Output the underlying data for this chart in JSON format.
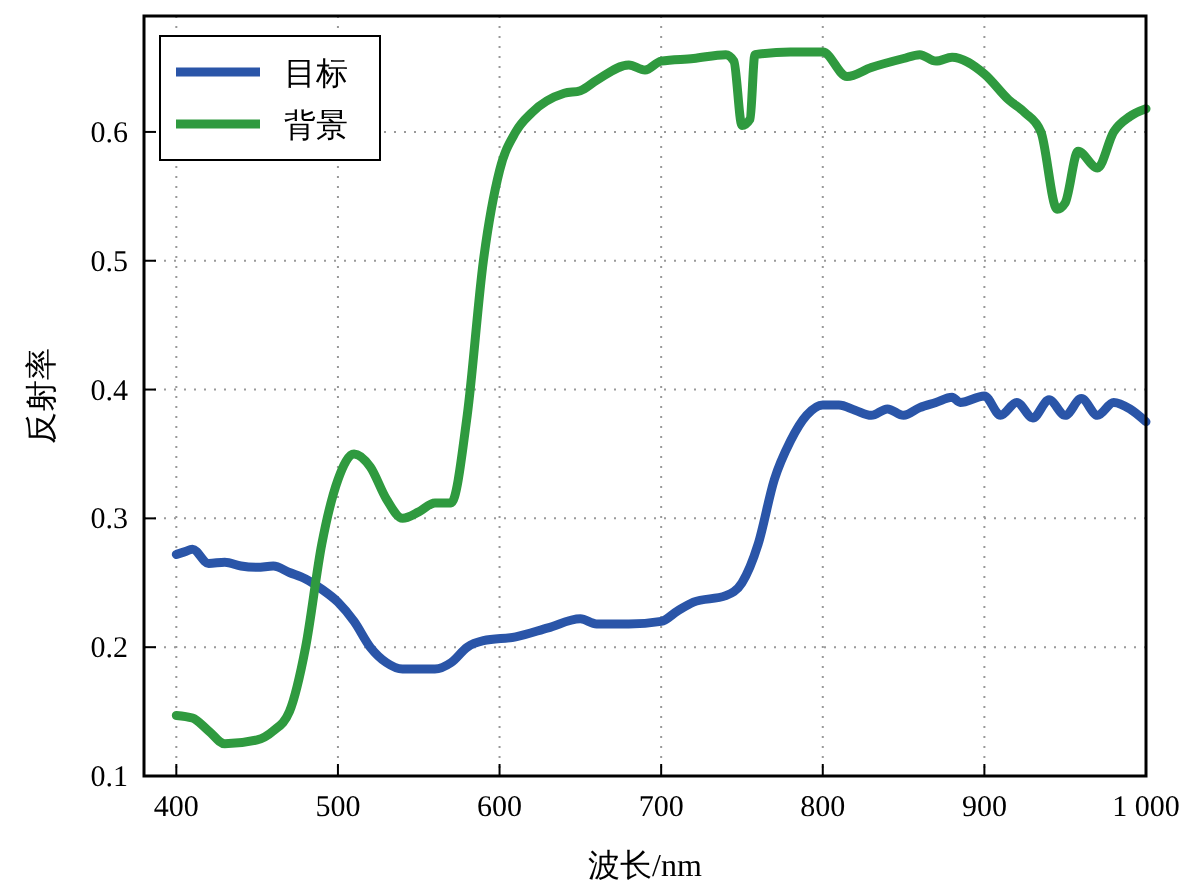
{
  "chart_data": {
    "type": "line",
    "xlabel": "波长/nm",
    "ylabel": "反射率",
    "xlim": [
      380,
      1000
    ],
    "ylim": [
      0.1,
      0.69
    ],
    "xticks": [
      400,
      500,
      600,
      700,
      800,
      900,
      {
        "value": 1000,
        "label": "1 000"
      }
    ],
    "yticks": [
      0.1,
      0.2,
      0.3,
      0.4,
      0.5,
      0.6
    ],
    "grid": true,
    "legend": "top left",
    "line_style": "solid",
    "series": [
      {
        "name": "目标",
        "color": "#2a55a8",
        "x": [
          400,
          405,
          410,
          420,
          430,
          440,
          450,
          460,
          470,
          480,
          490,
          500,
          510,
          520,
          530,
          540,
          560,
          570,
          580,
          590,
          610,
          630,
          650,
          660,
          680,
          700,
          710,
          720,
          740,
          750,
          760,
          770,
          780,
          790,
          800,
          810,
          820,
          830,
          840,
          850,
          860,
          870,
          880,
          885,
          900,
          910,
          920,
          930,
          940,
          950,
          960,
          970,
          980,
          990,
          1000
        ],
        "values": [
          0.272,
          0.274,
          0.276,
          0.265,
          0.266,
          0.263,
          0.262,
          0.263,
          0.258,
          0.253,
          0.245,
          0.235,
          0.22,
          0.2,
          0.188,
          0.183,
          0.183,
          0.188,
          0.2,
          0.205,
          0.208,
          0.215,
          0.222,
          0.218,
          0.218,
          0.22,
          0.228,
          0.235,
          0.24,
          0.25,
          0.28,
          0.33,
          0.36,
          0.38,
          0.388,
          0.388,
          0.384,
          0.38,
          0.385,
          0.38,
          0.386,
          0.39,
          0.394,
          0.39,
          0.395,
          0.38,
          0.39,
          0.378,
          0.392,
          0.38,
          0.393,
          0.38,
          0.39,
          0.385,
          0.375
        ]
      },
      {
        "name": "背景",
        "color": "#2f9a3f",
        "x": [
          400,
          410,
          420,
          430,
          450,
          460,
          470,
          480,
          490,
          500,
          510,
          520,
          530,
          540,
          550,
          560,
          570,
          580,
          590,
          600,
          610,
          620,
          640,
          650,
          660,
          680,
          690,
          700,
          720,
          740,
          745,
          750,
          755,
          758,
          780,
          800,
          815,
          830,
          850,
          860,
          870,
          880,
          900,
          915,
          925,
          935,
          945,
          950,
          958,
          970,
          980,
          990,
          1000
        ],
        "values": [
          0.147,
          0.145,
          0.135,
          0.125,
          0.128,
          0.135,
          0.15,
          0.2,
          0.28,
          0.33,
          0.35,
          0.34,
          0.315,
          0.3,
          0.305,
          0.312,
          0.312,
          0.38,
          0.5,
          0.57,
          0.6,
          0.615,
          0.63,
          0.632,
          0.64,
          0.652,
          0.648,
          0.655,
          0.657,
          0.66,
          0.655,
          0.605,
          0.61,
          0.66,
          0.662,
          0.662,
          0.643,
          0.65,
          0.657,
          0.66,
          0.655,
          0.658,
          0.645,
          0.625,
          0.615,
          0.6,
          0.54,
          0.545,
          0.585,
          0.572,
          0.6,
          0.612,
          0.618
        ]
      }
    ]
  }
}
